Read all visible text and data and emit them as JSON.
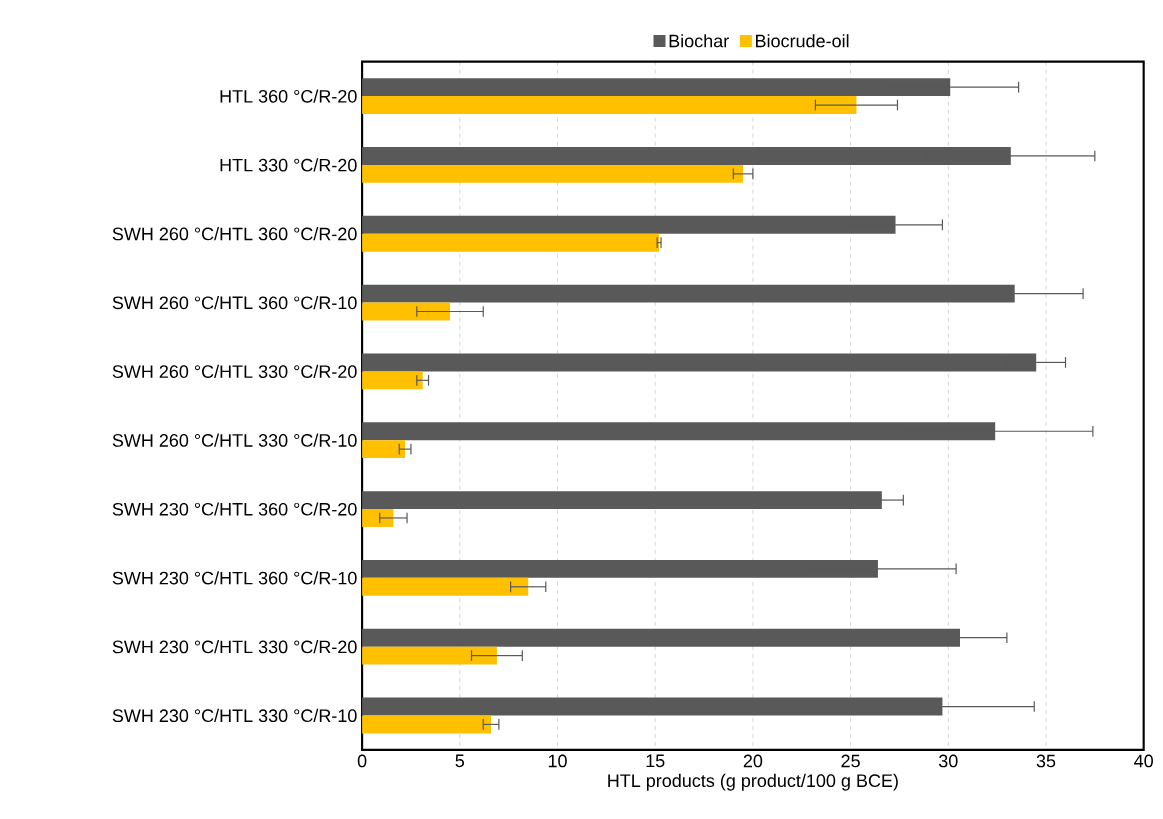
{
  "chart_data": {
    "type": "bar",
    "orientation": "horizontal",
    "xlabel": "HTL products (g product/100 g BCE)",
    "legend": "top",
    "grid": "x",
    "categories": [
      "HTL 360 °C/R-20",
      "HTL 330 °C/R-20",
      "SWH 260 °C/HTL 360 °C/R-20",
      "SWH 260 °C/HTL 360 °C/R-10",
      "SWH 260 °C/HTL 330 °C/R-20",
      "SWH 260 °C/HTL 330 °C/R-10",
      "SWH 230 °C/HTL 360 °C/R-20",
      "SWH 230 °C/HTL 360 °C/R-10",
      "SWH 230 °C/HTL 330 °C/R-20",
      "SWH 230 °C/HTL 330 °C/R-10"
    ],
    "xlim": [
      0,
      40
    ],
    "xticks": [
      0,
      5,
      10,
      15,
      20,
      25,
      30,
      35,
      40
    ],
    "series": [
      {
        "name": "Biochar",
        "color": "#595959",
        "values": [
          30.1,
          33.2,
          27.3,
          33.4,
          34.5,
          32.4,
          26.6,
          26.4,
          30.6,
          29.7
        ],
        "errors": [
          3.5,
          4.3,
          2.4,
          3.5,
          1.5,
          5.0,
          1.1,
          4.0,
          2.4,
          4.7
        ]
      },
      {
        "name": "Biocrude-oil",
        "color": "#ffc000",
        "values": [
          25.3,
          19.5,
          15.2,
          4.5,
          3.1,
          2.2,
          1.6,
          8.5,
          6.9,
          6.6
        ],
        "errors": [
          2.1,
          0.5,
          0.1,
          1.7,
          0.3,
          0.3,
          0.7,
          0.9,
          1.3,
          0.4
        ]
      }
    ]
  }
}
